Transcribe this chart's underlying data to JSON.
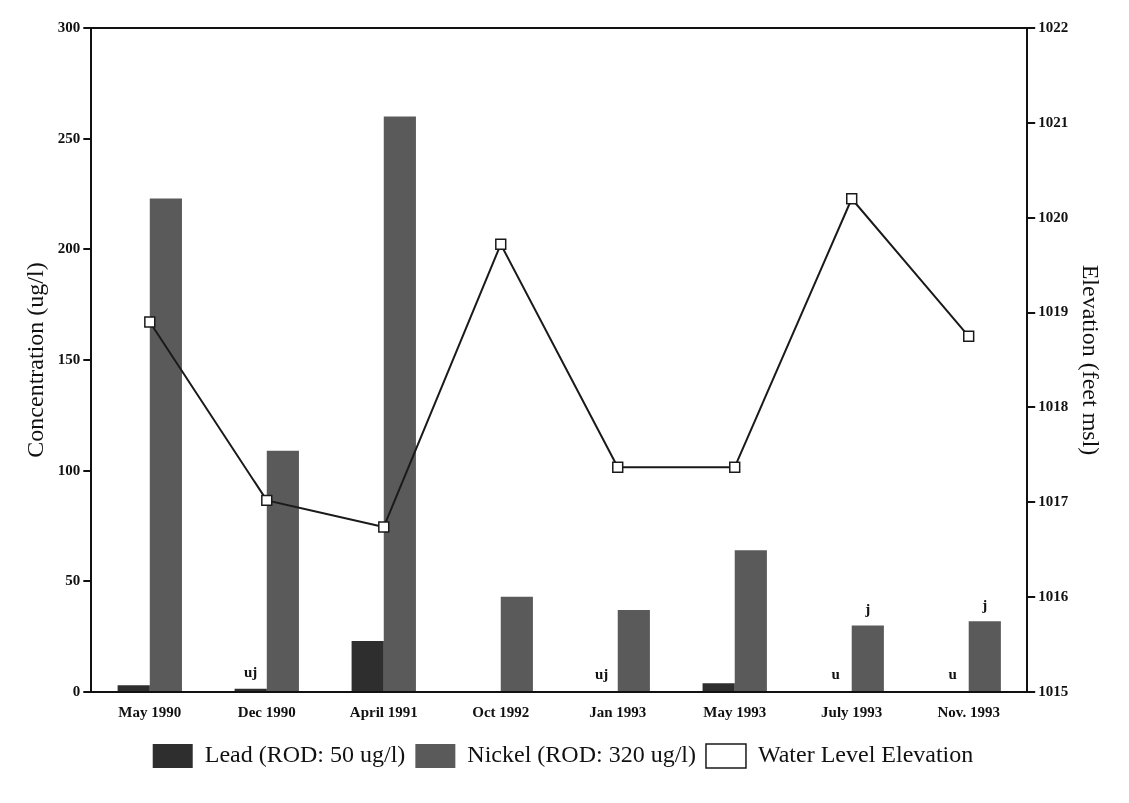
{
  "chart_data": {
    "type": "bar",
    "xlabel": null,
    "ylabel": "Concentration (ug/l)",
    "y2label": "Elevation (feet msl)",
    "categories": [
      "May 1990",
      "Dec 1990",
      "April 1991",
      "Oct 1992",
      "Jan 1993",
      "May 1993",
      "July 1993",
      "Nov. 1993"
    ],
    "series": [
      {
        "name": "Lead (ROD: 50 ug/l)",
        "color": "#2e2e2e",
        "values": [
          3,
          1.5,
          23,
          0.5,
          0.5,
          4,
          0.5,
          0.5
        ],
        "value_labels": [
          null,
          "uj",
          null,
          null,
          "uj",
          null,
          "u",
          "u"
        ]
      },
      {
        "name": "Nickel (ROD: 320 ug/l)",
        "color": "#5a5a5a",
        "values": [
          223,
          109,
          260,
          43,
          37,
          64,
          30,
          32
        ],
        "value_labels": [
          null,
          null,
          null,
          null,
          null,
          null,
          "j",
          "j"
        ]
      },
      {
        "name": "Water Level Elevation",
        "type": "line",
        "axis": "y2",
        "color": "#1a1a1a",
        "marker": "square",
        "values": [
          1018.9,
          1017.02,
          1016.74,
          1019.72,
          1017.37,
          1017.37,
          1020.2,
          1018.75
        ]
      }
    ],
    "ylim": [
      0,
      300
    ],
    "yticks": [
      0,
      50,
      100,
      150,
      200,
      250,
      300
    ],
    "y2lim": [
      1015,
      1022
    ],
    "y2ticks": [
      1015,
      1016,
      1017,
      1018,
      1019,
      1020,
      1021,
      1022
    ],
    "grid": false,
    "legend": "bottom"
  }
}
